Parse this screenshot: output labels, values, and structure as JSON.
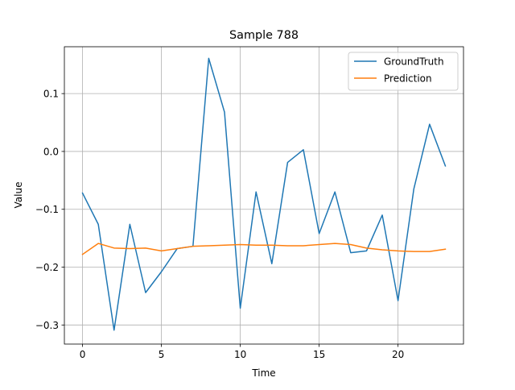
{
  "chart_data": {
    "type": "line",
    "title": "Sample 788",
    "xlabel": "Time",
    "ylabel": "Value",
    "xlim": [
      -1.15,
      24.15
    ],
    "ylim": [
      -0.333,
      0.181
    ],
    "xticks": [
      0,
      5,
      10,
      15,
      20
    ],
    "yticks": [
      -0.3,
      -0.2,
      -0.1,
      0.0,
      0.1
    ],
    "xtick_labels": [
      "0",
      "5",
      "10",
      "15",
      "20"
    ],
    "ytick_labels": [
      "−0.3",
      "−0.2",
      "−0.1",
      "0.0",
      "0.1"
    ],
    "grid": true,
    "legend_position": "top-right",
    "x": [
      0,
      1,
      2,
      3,
      4,
      5,
      6,
      7,
      8,
      9,
      10,
      11,
      12,
      13,
      14,
      15,
      16,
      17,
      18,
      19,
      20,
      21,
      22,
      23
    ],
    "series": [
      {
        "name": "GroundTruth",
        "color": "#1f77b4",
        "values": [
          -0.072,
          -0.126,
          -0.309,
          -0.126,
          -0.244,
          -0.208,
          -0.168,
          -0.164,
          0.161,
          0.068,
          -0.271,
          -0.07,
          -0.194,
          -0.019,
          0.003,
          -0.142,
          -0.07,
          -0.175,
          -0.172,
          -0.11,
          -0.258,
          -0.065,
          0.047,
          -0.025
        ]
      },
      {
        "name": "Prediction",
        "color": "#ff7f0e",
        "values": [
          -0.178,
          -0.159,
          -0.167,
          -0.168,
          -0.167,
          -0.172,
          -0.168,
          -0.164,
          -0.163,
          -0.162,
          -0.161,
          -0.162,
          -0.162,
          -0.163,
          -0.163,
          -0.161,
          -0.159,
          -0.161,
          -0.167,
          -0.17,
          -0.172,
          -0.173,
          -0.173,
          -0.169
        ]
      }
    ]
  }
}
